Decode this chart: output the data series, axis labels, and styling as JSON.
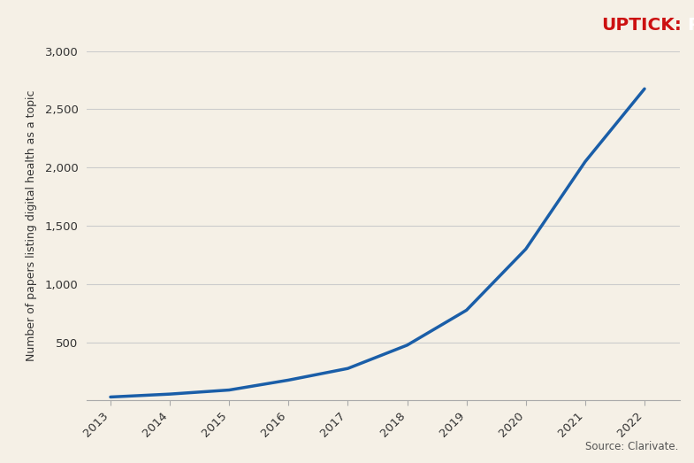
{
  "years": [
    2013,
    2014,
    2015,
    2016,
    2017,
    2018,
    2019,
    2020,
    2021,
    2022
  ],
  "values": [
    30,
    55,
    90,
    175,
    275,
    475,
    775,
    1300,
    2050,
    2675
  ],
  "line_color": "#1a5ea8",
  "line_width": 2.5,
  "background_color": "#f5f0e6",
  "header_bg_color": "#0d0d0d",
  "title_red": "UPTICK:",
  "title_white": " PAPERS ON DIGITAL HEALTH",
  "ylabel": "Number of papers listing digital health as a topic",
  "ylim": [
    0,
    3000
  ],
  "yticks": [
    0,
    500,
    1000,
    1500,
    2000,
    2500,
    3000
  ],
  "ytick_labels": [
    "",
    "500",
    "1,000",
    "1,500",
    "2,000",
    "2,500",
    "3,000"
  ],
  "source_text": "Source: Clarivate.",
  "grid_color": "#cccccc",
  "axis_color": "#aaaaaa"
}
